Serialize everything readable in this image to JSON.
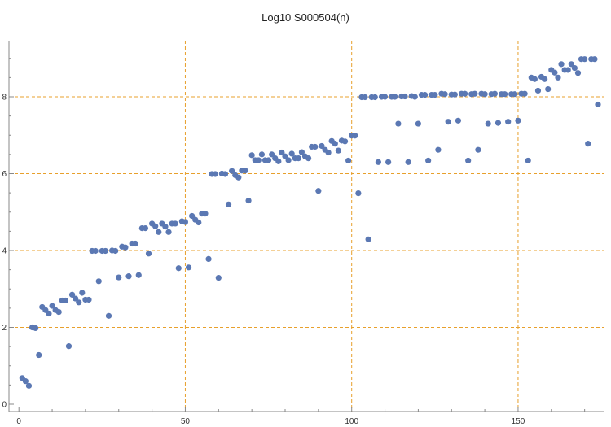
{
  "chart_data": {
    "type": "scatter",
    "title": "Log10 S000504(n)",
    "xlabel": "",
    "ylabel": "",
    "xlim": [
      0,
      175
    ],
    "ylim": [
      0,
      9
    ],
    "grid": "dashed at x=50,100,150 and y=2,4,6,8",
    "x_ticks": [
      0,
      50,
      100,
      150
    ],
    "x_tick_labels": [
      "0",
      "50",
      "100",
      "150"
    ],
    "y_ticks": [
      0,
      2,
      4,
      6,
      8
    ],
    "y_tick_labels": [
      "0",
      "2",
      "4",
      "6",
      "8"
    ],
    "colors": {
      "points": "#5b78b3",
      "grid": "#e8a02c",
      "axis": "#888888"
    },
    "points": [
      [
        1,
        0.68
      ],
      [
        2,
        0.6
      ],
      [
        3,
        0.48
      ],
      [
        4,
        2.0
      ],
      [
        5,
        1.98
      ],
      [
        6,
        1.28
      ],
      [
        7,
        2.53
      ],
      [
        8,
        2.45
      ],
      [
        9,
        2.36
      ],
      [
        10,
        2.56
      ],
      [
        11,
        2.45
      ],
      [
        12,
        2.4
      ],
      [
        13,
        2.7
      ],
      [
        14,
        2.7
      ],
      [
        15,
        1.51
      ],
      [
        16,
        2.85
      ],
      [
        17,
        2.75
      ],
      [
        18,
        2.65
      ],
      [
        19,
        2.9
      ],
      [
        20,
        2.72
      ],
      [
        21,
        2.72
      ],
      [
        22,
        3.99
      ],
      [
        23,
        3.99
      ],
      [
        24,
        3.2
      ],
      [
        25,
        3.99
      ],
      [
        26,
        3.99
      ],
      [
        27,
        2.3
      ],
      [
        28,
        4.0
      ],
      [
        29,
        3.99
      ],
      [
        30,
        3.3
      ],
      [
        31,
        4.1
      ],
      [
        32,
        4.08
      ],
      [
        33,
        3.33
      ],
      [
        34,
        4.18
      ],
      [
        35,
        4.18
      ],
      [
        36,
        3.36
      ],
      [
        37,
        4.58
      ],
      [
        38,
        4.58
      ],
      [
        39,
        3.92
      ],
      [
        40,
        4.7
      ],
      [
        41,
        4.63
      ],
      [
        42,
        4.48
      ],
      [
        43,
        4.7
      ],
      [
        44,
        4.62
      ],
      [
        45,
        4.48
      ],
      [
        46,
        4.7
      ],
      [
        47,
        4.7
      ],
      [
        48,
        3.54
      ],
      [
        49,
        4.76
      ],
      [
        50,
        4.74
      ],
      [
        51,
        3.56
      ],
      [
        52,
        4.9
      ],
      [
        53,
        4.8
      ],
      [
        54,
        4.73
      ],
      [
        55,
        4.96
      ],
      [
        56,
        4.96
      ],
      [
        57,
        3.78
      ],
      [
        58,
        5.99
      ],
      [
        59,
        5.99
      ],
      [
        60,
        3.29
      ],
      [
        61,
        6.0
      ],
      [
        62,
        5.99
      ],
      [
        63,
        5.2
      ],
      [
        64,
        6.07
      ],
      [
        65,
        5.96
      ],
      [
        66,
        5.9
      ],
      [
        67,
        6.08
      ],
      [
        68,
        6.08
      ],
      [
        69,
        5.3
      ],
      [
        70,
        6.48
      ],
      [
        71,
        6.35
      ],
      [
        72,
        6.35
      ],
      [
        73,
        6.5
      ],
      [
        74,
        6.35
      ],
      [
        75,
        6.35
      ],
      [
        76,
        6.5
      ],
      [
        77,
        6.4
      ],
      [
        78,
        6.32
      ],
      [
        79,
        6.55
      ],
      [
        80,
        6.45
      ],
      [
        81,
        6.35
      ],
      [
        82,
        6.52
      ],
      [
        83,
        6.4
      ],
      [
        84,
        6.4
      ],
      [
        85,
        6.56
      ],
      [
        86,
        6.45
      ],
      [
        87,
        6.4
      ],
      [
        88,
        6.7
      ],
      [
        89,
        6.7
      ],
      [
        90,
        5.55
      ],
      [
        91,
        6.72
      ],
      [
        92,
        6.62
      ],
      [
        93,
        6.55
      ],
      [
        94,
        6.85
      ],
      [
        95,
        6.78
      ],
      [
        96,
        6.6
      ],
      [
        97,
        6.86
      ],
      [
        98,
        6.84
      ],
      [
        99,
        6.34
      ],
      [
        100,
        6.99
      ],
      [
        101,
        6.99
      ],
      [
        102,
        5.49
      ],
      [
        103,
        7.99
      ],
      [
        104,
        7.99
      ],
      [
        105,
        4.29
      ],
      [
        106,
        7.99
      ],
      [
        107,
        7.99
      ],
      [
        108,
        6.3
      ],
      [
        109,
        8.0
      ],
      [
        110,
        8.0
      ],
      [
        111,
        6.3
      ],
      [
        112,
        8.0
      ],
      [
        113,
        8.0
      ],
      [
        114,
        7.3
      ],
      [
        115,
        8.01
      ],
      [
        116,
        8.01
      ],
      [
        117,
        6.3
      ],
      [
        118,
        8.02
      ],
      [
        119,
        8.0
      ],
      [
        120,
        7.3
      ],
      [
        121,
        8.05
      ],
      [
        122,
        8.05
      ],
      [
        123,
        6.34
      ],
      [
        124,
        8.05
      ],
      [
        125,
        8.05
      ],
      [
        126,
        6.62
      ],
      [
        127,
        8.08
      ],
      [
        128,
        8.07
      ],
      [
        129,
        7.35
      ],
      [
        130,
        8.06
      ],
      [
        131,
        8.06
      ],
      [
        132,
        7.38
      ],
      [
        133,
        8.08
      ],
      [
        134,
        8.08
      ],
      [
        135,
        6.34
      ],
      [
        136,
        8.07
      ],
      [
        137,
        8.08
      ],
      [
        138,
        6.62
      ],
      [
        139,
        8.08
      ],
      [
        140,
        8.07
      ],
      [
        141,
        7.3
      ],
      [
        142,
        8.07
      ],
      [
        143,
        8.08
      ],
      [
        144,
        7.32
      ],
      [
        145,
        8.07
      ],
      [
        146,
        8.07
      ],
      [
        147,
        7.35
      ],
      [
        148,
        8.07
      ],
      [
        149,
        8.07
      ],
      [
        150,
        7.38
      ],
      [
        151,
        8.08
      ],
      [
        152,
        8.08
      ],
      [
        153,
        6.34
      ],
      [
        154,
        8.5
      ],
      [
        155,
        8.46
      ],
      [
        156,
        8.16
      ],
      [
        157,
        8.52
      ],
      [
        158,
        8.46
      ],
      [
        159,
        8.2
      ],
      [
        160,
        8.7
      ],
      [
        161,
        8.63
      ],
      [
        162,
        8.5
      ],
      [
        163,
        8.85
      ],
      [
        164,
        8.7
      ],
      [
        165,
        8.7
      ],
      [
        166,
        8.85
      ],
      [
        167,
        8.75
      ],
      [
        168,
        8.62
      ],
      [
        169,
        8.98
      ],
      [
        170,
        8.98
      ],
      [
        171,
        6.78
      ],
      [
        172,
        8.98
      ],
      [
        173,
        8.98
      ],
      [
        174,
        7.8
      ]
    ]
  }
}
